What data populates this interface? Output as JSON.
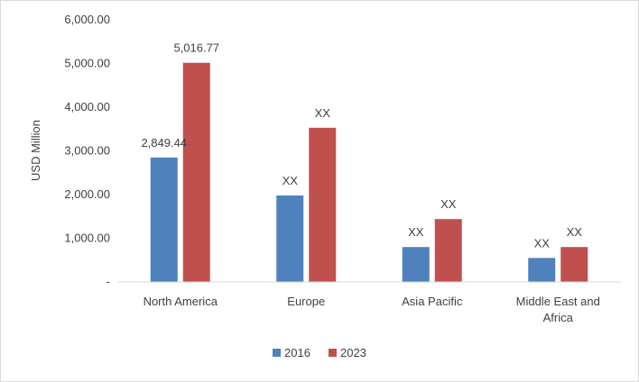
{
  "chart_data": {
    "type": "bar",
    "title": "",
    "xlabel": "",
    "ylabel": "USD Million",
    "categories": [
      "North America",
      "Europe",
      "Asia Pacific",
      "Middle East and Africa"
    ],
    "series": [
      {
        "name": "2016",
        "color": "#4f81bd",
        "values": [
          2849.44,
          1980,
          800,
          550
        ],
        "labels": [
          "2,849.44",
          "XX",
          "XX",
          "XX"
        ]
      },
      {
        "name": "2023",
        "color": "#c0504d",
        "values": [
          5016.77,
          3530,
          1440,
          800
        ],
        "labels": [
          "5,016.77",
          "XX",
          "XX",
          "XX"
        ]
      }
    ],
    "ylim": [
      0,
      6000
    ],
    "yticks": [
      0,
      1000,
      2000,
      3000,
      4000,
      5000,
      6000
    ],
    "ytick_labels": [
      "-",
      "1,000.00",
      "2,000.00",
      "3,000.00",
      "4,000.00",
      "5,000.00",
      "6,000.00"
    ],
    "grid": false,
    "legend_position": "bottom"
  }
}
